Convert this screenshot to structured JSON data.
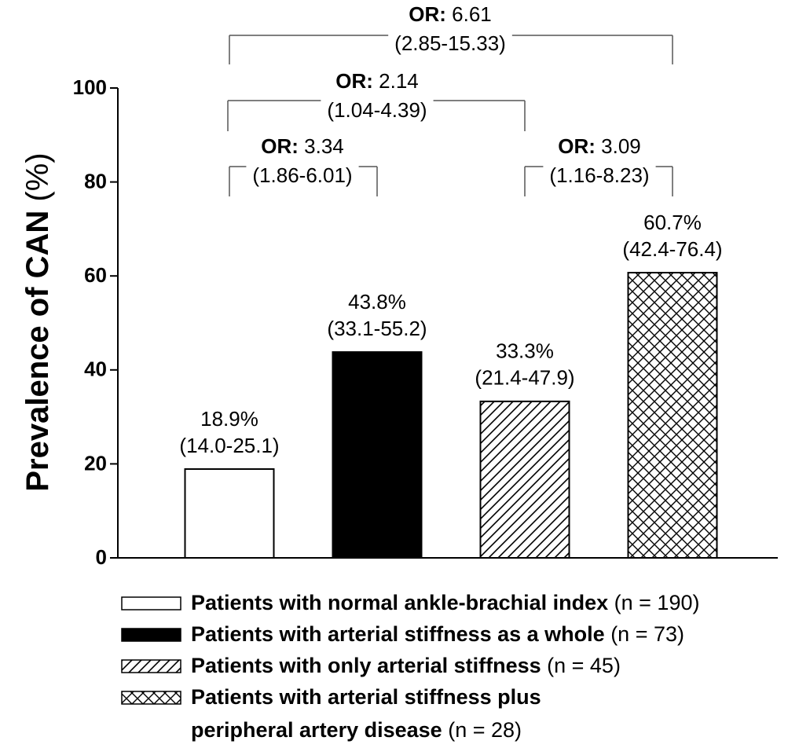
{
  "chart_data": {
    "type": "bar",
    "y_label": "Prevalence of CAN",
    "y_label_unit": "(%)",
    "categories": [
      null,
      null,
      null,
      null
    ],
    "values": [
      18.9,
      43.8,
      33.3,
      60.7
    ],
    "value_labels": [
      "18.9%",
      "43.8%",
      "33.3%",
      "60.7%"
    ],
    "intervals": [
      "(14.0-25.1)",
      "(33.1-55.2)",
      "(21.4-47.9)",
      "(42.4-76.4)"
    ],
    "patterns": [
      "none",
      "solid",
      "hatch",
      "crosshatch"
    ],
    "color": "#000000",
    "ylim": [
      0,
      100
    ],
    "yticks": [
      0,
      20,
      40,
      60,
      80,
      100
    ],
    "comparisons": [
      {
        "label": "OR:",
        "value": 6.61,
        "ci": "(2.85-15.33)"
      },
      {
        "label": "OR:",
        "value": 2.14,
        "ci": "(1.04-4.39)"
      },
      {
        "label": "OR:",
        "value": 3.34,
        "ci": "(1.86-6.01)"
      },
      {
        "label": "OR:",
        "value": 3.09,
        "ci": "(1.16-8.23)"
      }
    ],
    "legend": [
      {
        "lines": [
          "Patients with normal ankle-brachial index"
        ],
        "n": "(n = 190)"
      },
      {
        "lines": [
          "Patients with arterial stiffness as a whole"
        ],
        "n": "(n = 73)"
      },
      {
        "lines": [
          "Patients with only arterial stiffness"
        ],
        "n": "(n = 45)"
      },
      {
        "lines": [
          "Patients with arterial stiffness plus",
          "peripheral artery disease"
        ],
        "n": "(n = 28)"
      }
    ]
  }
}
